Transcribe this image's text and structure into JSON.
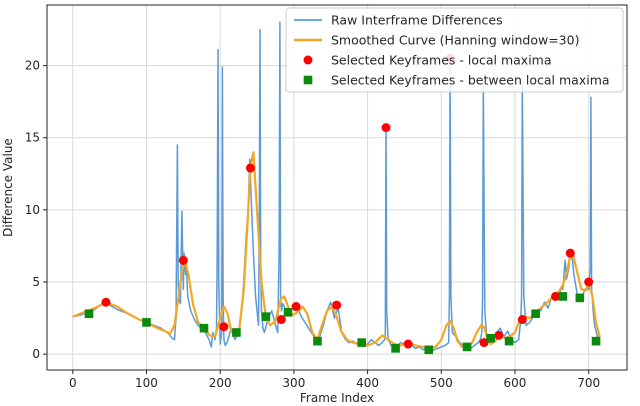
{
  "chart_data": {
    "type": "line",
    "title": "",
    "xlabel": "Frame Index",
    "ylabel": "Difference Value",
    "xlim": [
      -35,
      752
    ],
    "ylim": [
      -1.1,
      24.2
    ],
    "xticks": [
      0,
      100,
      200,
      300,
      400,
      500,
      600,
      700
    ],
    "yticks": [
      0,
      5,
      10,
      15,
      20
    ],
    "grid": true,
    "legend_position": "top-right",
    "colors": {
      "raw": "#5b9bd5",
      "smooth": "#f5a623",
      "maxima": "#ff0000",
      "between": "#0b8a0b",
      "grid": "#d9d9d9",
      "axis": "#262626"
    },
    "series": [
      {
        "name": "Raw Interframe Differences",
        "kind": "line",
        "x": [
          0,
          10,
          20,
          30,
          40,
          45,
          50,
          60,
          70,
          80,
          90,
          100,
          110,
          120,
          130,
          135,
          138,
          140,
          142,
          143,
          144,
          146,
          148,
          150,
          151,
          152,
          153,
          154,
          156,
          160,
          165,
          170,
          175,
          180,
          185,
          188,
          190,
          193,
          195,
          196,
          197,
          198,
          200,
          202,
          203,
          204,
          205,
          207,
          210,
          215,
          220,
          225,
          230,
          233,
          235,
          238,
          240,
          242,
          245,
          248,
          250,
          252,
          253,
          254,
          255,
          256,
          258,
          260,
          265,
          270,
          275,
          278,
          280,
          281,
          282,
          283,
          285,
          290,
          295,
          300,
          305,
          310,
          315,
          320,
          325,
          330,
          335,
          340,
          345,
          350,
          355,
          360,
          365,
          370,
          375,
          380,
          385,
          390,
          395,
          400,
          405,
          410,
          415,
          420,
          423,
          424,
          425,
          426,
          428,
          432,
          436,
          440,
          445,
          450,
          455,
          460,
          465,
          470,
          475,
          480,
          485,
          490,
          495,
          500,
          505,
          510,
          511,
          512,
          513,
          515,
          520,
          525,
          530,
          535,
          540,
          545,
          550,
          553,
          555,
          556,
          557,
          559,
          562,
          565,
          570,
          575,
          580,
          585,
          590,
          595,
          600,
          605,
          608,
          609,
          610,
          612,
          615,
          620,
          625,
          630,
          635,
          640,
          645,
          650,
          655,
          660,
          662,
          665,
          668,
          670,
          673,
          675,
          678,
          680,
          685,
          690,
          695,
          700,
          702,
          703,
          704,
          706,
          708,
          712,
          715
        ],
        "y": [
          2.6,
          2.7,
          2.9,
          3.1,
          3.5,
          3.6,
          3.4,
          3.1,
          2.9,
          2.7,
          2.4,
          2.2,
          2.0,
          1.8,
          1.4,
          1.1,
          1.0,
          2.5,
          14.5,
          5.0,
          3.8,
          3.5,
          9.9,
          4.5,
          7.0,
          6.5,
          5.5,
          6.2,
          4.0,
          3.0,
          2.4,
          2.0,
          1.7,
          1.5,
          1.0,
          0.5,
          1.5,
          1.0,
          1.8,
          7.0,
          21.1,
          5.0,
          0.7,
          1.5,
          19.9,
          4.0,
          1.0,
          0.6,
          0.9,
          1.8,
          1.0,
          1.5,
          3.5,
          6.0,
          8.0,
          10.0,
          13.5,
          11.0,
          7.0,
          4.0,
          3.0,
          2.0,
          8.0,
          22.5,
          6.0,
          3.0,
          1.8,
          1.5,
          2.5,
          3.0,
          2.0,
          1.5,
          7.0,
          23.0,
          4.0,
          3.0,
          3.5,
          3.0,
          2.9,
          3.3,
          3.2,
          2.6,
          2.2,
          1.8,
          1.4,
          1.0,
          1.2,
          2.0,
          3.0,
          3.6,
          2.5,
          3.2,
          1.5,
          1.0,
          0.8,
          0.9,
          0.7,
          0.8,
          0.6,
          0.7,
          1.0,
          0.8,
          0.6,
          0.8,
          1.0,
          1.2,
          15.8,
          3.0,
          1.0,
          0.6,
          0.5,
          0.6,
          0.8,
          0.7,
          0.5,
          0.6,
          0.4,
          0.5,
          0.3,
          0.4,
          0.2,
          0.3,
          0.4,
          0.5,
          0.6,
          0.8,
          4.0,
          20.3,
          4.0,
          1.5,
          1.2,
          0.8,
          0.6,
          0.5,
          0.4,
          0.6,
          0.8,
          1.0,
          1.5,
          4.0,
          18.8,
          3.0,
          1.0,
          0.8,
          1.0,
          1.5,
          1.8,
          1.2,
          1.6,
          1.0,
          0.8,
          1.0,
          2.5,
          4.0,
          18.9,
          4.0,
          2.0,
          2.2,
          2.6,
          3.0,
          3.0,
          3.6,
          3.2,
          4.0,
          4.2,
          3.8,
          4.5,
          4.5,
          6.5,
          5.2,
          6.0,
          7.0,
          6.5,
          5.5,
          4.0,
          3.8,
          4.5,
          4.5,
          6.0,
          17.8,
          4.5,
          3.0,
          2.0,
          1.2,
          1.1
        ]
      },
      {
        "name": "Smoothed Curve (Hanning window=30)",
        "kind": "line",
        "x": [
          0,
          15,
          30,
          45,
          60,
          75,
          90,
          100,
          115,
          125,
          132,
          138,
          143,
          148,
          152,
          157,
          163,
          170,
          178,
          186,
          193,
          200,
          205,
          210,
          215,
          220,
          226,
          232,
          237,
          241,
          245,
          250,
          256,
          262,
          268,
          275,
          282,
          287,
          292,
          298,
          305,
          312,
          318,
          325,
          332,
          338,
          345,
          352,
          358,
          364,
          372,
          380,
          390,
          400,
          410,
          420,
          428,
          436,
          445,
          455,
          465,
          475,
          485,
          492,
          500,
          507,
          512,
          517,
          522,
          528,
          535,
          542,
          548,
          554,
          558,
          562,
          567,
          573,
          580,
          587,
          595,
          600,
          605,
          610,
          615,
          620,
          628,
          635,
          642,
          650,
          658,
          665,
          670,
          674,
          678,
          683,
          690,
          696,
          700,
          705,
          710,
          715
        ],
        "y": [
          2.6,
          2.9,
          3.2,
          3.6,
          3.3,
          2.8,
          2.4,
          2.2,
          1.8,
          1.6,
          1.4,
          2.0,
          3.8,
          5.7,
          6.5,
          5.5,
          3.5,
          2.2,
          1.8,
          1.3,
          1.2,
          2.5,
          3.3,
          2.8,
          1.6,
          1.3,
          1.8,
          4.5,
          9.0,
          13.0,
          14.0,
          10.0,
          5.0,
          2.5,
          2.0,
          2.3,
          3.8,
          4.0,
          3.3,
          2.7,
          2.9,
          3.3,
          2.8,
          1.5,
          1.0,
          2.0,
          3.0,
          3.3,
          2.6,
          1.6,
          1.0,
          0.8,
          0.7,
          0.6,
          0.8,
          1.3,
          1.0,
          0.7,
          0.6,
          0.8,
          0.6,
          0.5,
          0.4,
          0.5,
          1.0,
          2.0,
          2.3,
          1.8,
          0.9,
          0.5,
          0.5,
          0.8,
          1.5,
          2.0,
          1.9,
          1.2,
          0.7,
          0.9,
          1.3,
          1.1,
          1.3,
          1.5,
          2.2,
          2.5,
          2.6,
          2.5,
          2.9,
          3.2,
          3.5,
          3.9,
          4.2,
          4.8,
          5.6,
          6.6,
          7.1,
          6.0,
          4.5,
          4.4,
          5.0,
          4.0,
          2.2,
          1.2
        ]
      },
      {
        "name": "Selected Keyframes - local maxima",
        "kind": "scatter",
        "marker": "circle",
        "x": [
          45,
          150,
          205,
          241,
          283,
          303,
          358,
          425,
          455,
          512,
          558,
          578,
          610,
          655,
          675,
          700
        ],
        "y": [
          3.6,
          6.5,
          1.9,
          12.9,
          2.4,
          3.3,
          3.4,
          15.7,
          0.7,
          20.5,
          0.8,
          1.3,
          2.4,
          4.0,
          7.0,
          5.0
        ]
      },
      {
        "name": "Selected Keyframes - between local maxima",
        "kind": "scatter",
        "marker": "square",
        "x": [
          22,
          100,
          178,
          222,
          262,
          292,
          332,
          392,
          438,
          483,
          535,
          567,
          592,
          628,
          665,
          688,
          710
        ],
        "y": [
          2.8,
          2.2,
          1.8,
          1.5,
          2.6,
          2.9,
          0.9,
          0.8,
          0.4,
          0.3,
          0.5,
          1.1,
          0.9,
          2.8,
          4.0,
          3.9,
          0.9
        ]
      }
    ]
  }
}
